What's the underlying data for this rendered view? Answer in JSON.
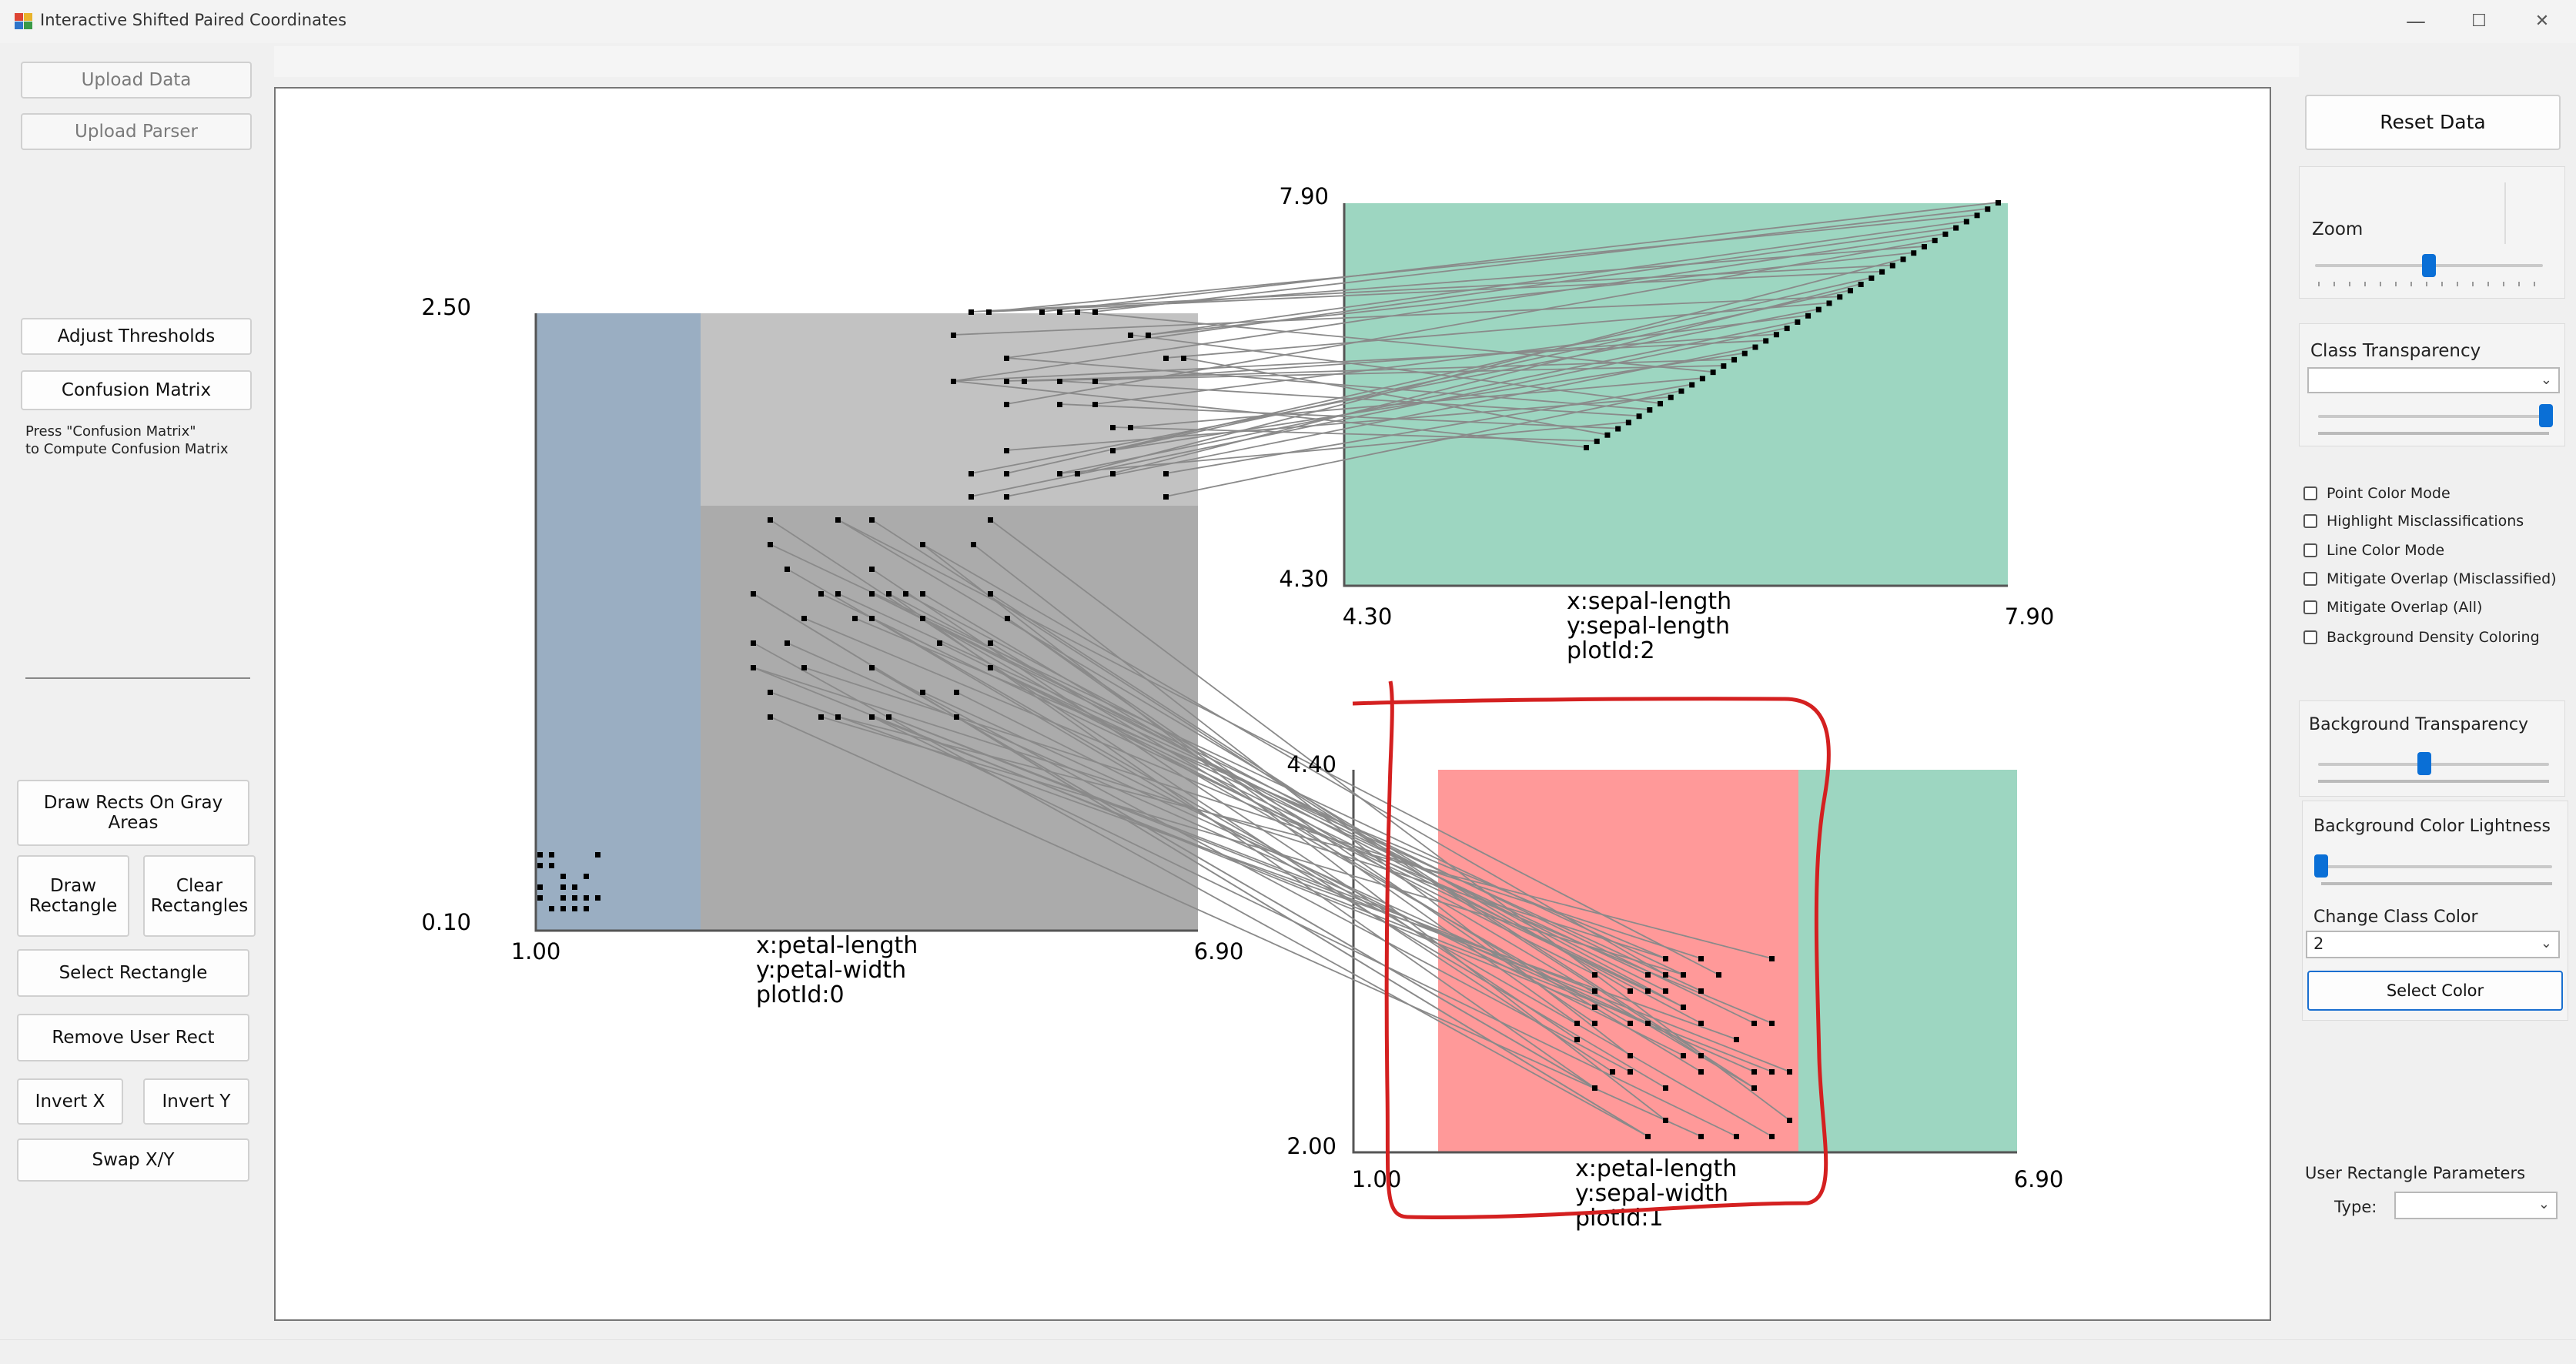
{
  "window": {
    "title": "Interactive Shifted Paired Coordinates",
    "minimize": "—",
    "maximize": "☐",
    "close": "✕"
  },
  "left_panel": {
    "upload_data": "Upload Data",
    "upload_parser": "Upload Parser",
    "adjust_thresholds": "Adjust Thresholds",
    "confusion_matrix": "Confusion Matrix",
    "confusion_text": "Press \"Confusion Matrix\"\nto Compute Confusion Matrix",
    "draw_rects_gray": "Draw Rects On Gray Areas",
    "draw_rectangle": "Draw Rectangle",
    "clear_rectangles": "Clear Rectangles",
    "select_rectangle": "Select Rectangle",
    "remove_user_rect": "Remove User Rect",
    "invert_x": "Invert X",
    "invert_y": "Invert Y",
    "swap_xy": "Swap X/Y"
  },
  "plots": [
    {
      "id": "plot-0",
      "x_label": "x:petal-length",
      "y_label": "y:petal-width",
      "plot_label": "plotId:0",
      "x_min": "1.00",
      "x_max": "6.90",
      "y_min": "0.10",
      "y_max": "2.50"
    },
    {
      "id": "plot-1",
      "x_label": "x:petal-length",
      "y_label": "y:sepal-width",
      "plot_label": "plotId:1",
      "x_min": "1.00",
      "x_max": "6.90",
      "y_min": "2.00",
      "y_max": "4.40"
    },
    {
      "id": "plot-2",
      "x_label": "x:sepal-length",
      "y_label": "y:sepal-length",
      "plot_label": "plotId:2",
      "x_min": "4.30",
      "x_max": "7.90",
      "y_min": "4.30",
      "y_max": "7.90"
    }
  ],
  "colors": {
    "blue_region": "#9aaec2",
    "gray_light": "#c2c2c2",
    "gray_dark": "#ababab",
    "green_region": "#9dd6c1",
    "red_region": "#ff9999",
    "annotation_red": "#d42020",
    "line_gray": "#8a8a8a"
  },
  "right_panel": {
    "reset_data": "Reset Data",
    "zoom_label": "Zoom",
    "zoom_level": 0.5,
    "class_transparency_label": "Class Transparency",
    "class_transparency_value": "",
    "class_transparency_level": 1.0,
    "checkboxes": [
      "Point Color Mode",
      "Highlight Misclassifications",
      "Line Color Mode",
      "Mitigate Overlap (Misclassified)",
      "Mitigate Overlap (All)",
      "Background Density Coloring"
    ],
    "background_transparency_label": "Background Transparency",
    "background_transparency_level": 0.46,
    "background_lightness_label": "Background Color Lightness",
    "background_lightness_level": 0.0,
    "change_class_color_label": "Change Class Color",
    "class_color_value": "2",
    "select_color": "Select Color",
    "user_rect_params_label": "User Rectangle Parameters",
    "type_label": "Type:",
    "type_value": ""
  }
}
